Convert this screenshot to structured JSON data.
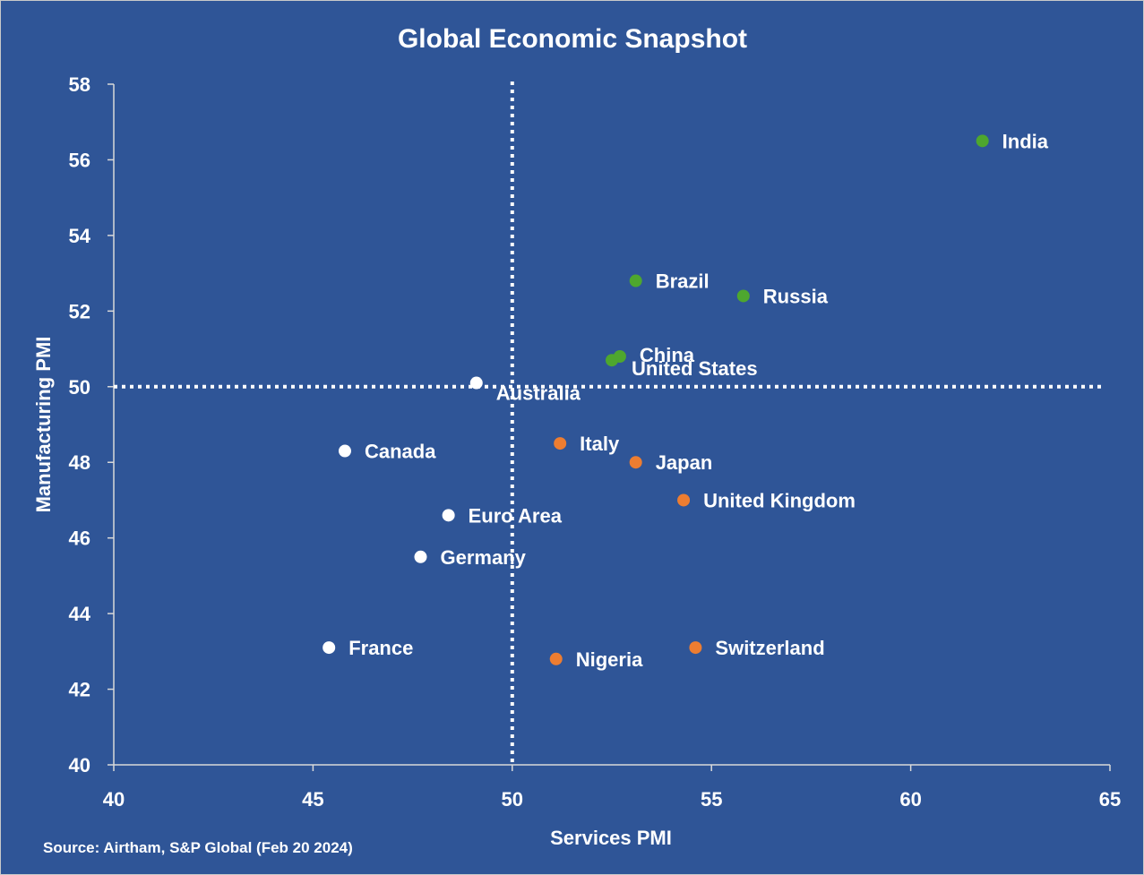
{
  "chart_data": {
    "type": "scatter",
    "title": "Global Economic Snapshot",
    "xlabel": "Services PMI",
    "ylabel": "Manufacturing PMI",
    "xlim": [
      40,
      65
    ],
    "ylim": [
      40,
      58
    ],
    "xticks": [
      40,
      45,
      50,
      55,
      60,
      65
    ],
    "yticks": [
      40,
      42,
      44,
      46,
      48,
      50,
      52,
      54,
      56,
      58
    ],
    "reference_lines": {
      "x": 50,
      "y": 50,
      "style": "dotted"
    },
    "source": "Source: Airtham, S&P Global (Feb 20 2024)",
    "colors": {
      "background": "#2f5597",
      "text": "#ffffff",
      "expanding": "#4ea72e",
      "mixed": "#ed7d31",
      "contracting": "#ffffff"
    },
    "points": [
      {
        "name": "India",
        "x": 61.8,
        "y": 56.5,
        "group": "expanding"
      },
      {
        "name": "Brazil",
        "x": 53.1,
        "y": 52.8,
        "group": "expanding"
      },
      {
        "name": "Russia",
        "x": 55.8,
        "y": 52.4,
        "group": "expanding"
      },
      {
        "name": "China",
        "x": 52.7,
        "y": 50.8,
        "group": "expanding"
      },
      {
        "name": "United States",
        "x": 52.5,
        "y": 50.7,
        "group": "expanding"
      },
      {
        "name": "Australia",
        "x": 49.1,
        "y": 50.1,
        "group": "contracting"
      },
      {
        "name": "Canada",
        "x": 45.8,
        "y": 48.3,
        "group": "contracting"
      },
      {
        "name": "Euro Area",
        "x": 48.4,
        "y": 46.6,
        "group": "contracting"
      },
      {
        "name": "Germany",
        "x": 47.7,
        "y": 45.5,
        "group": "contracting"
      },
      {
        "name": "France",
        "x": 45.4,
        "y": 43.1,
        "group": "contracting"
      },
      {
        "name": "Italy",
        "x": 51.2,
        "y": 48.5,
        "group": "mixed"
      },
      {
        "name": "Japan",
        "x": 53.1,
        "y": 48.0,
        "group": "mixed"
      },
      {
        "name": "United Kingdom",
        "x": 54.3,
        "y": 47.0,
        "group": "mixed"
      },
      {
        "name": "Switzerland",
        "x": 54.6,
        "y": 43.1,
        "group": "mixed"
      },
      {
        "name": "Nigeria",
        "x": 51.1,
        "y": 42.8,
        "group": "mixed"
      }
    ]
  }
}
